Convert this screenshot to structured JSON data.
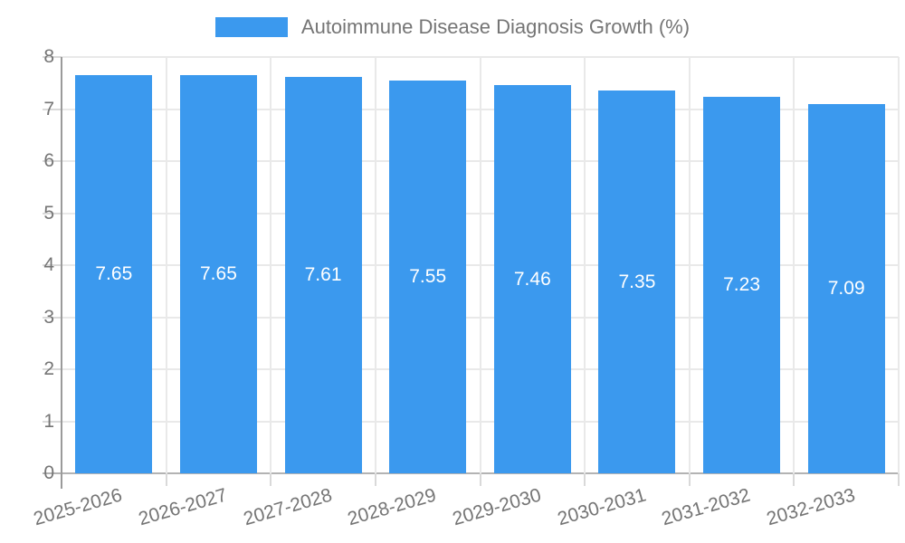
{
  "legend": {
    "label": "Autoimmune Disease Diagnosis Growth (%)"
  },
  "colors": {
    "bar": "#3b99ee",
    "grid": "#e9e9e9",
    "baseline": "#b3b3b3",
    "axis_line": "#9a9a9a",
    "tick": "#d9d9d9",
    "axis_text": "#757575",
    "value_text": "#ffffff",
    "background": "#ffffff"
  },
  "chart_data": {
    "type": "bar",
    "title": "Autoimmune Disease Diagnosis Growth (%)",
    "categories": [
      "2025-2026",
      "2026-2027",
      "2027-2028",
      "2028-2029",
      "2029-2030",
      "2030-2031",
      "2031-2032",
      "2032-2033"
    ],
    "values": [
      7.65,
      7.65,
      7.61,
      7.55,
      7.46,
      7.35,
      7.23,
      7.09
    ],
    "value_labels": [
      "7.65",
      "7.65",
      "7.61",
      "7.55",
      "7.46",
      "7.35",
      "7.23",
      "7.09"
    ],
    "xlabel": "",
    "ylabel": "",
    "ylim": [
      0,
      8
    ],
    "yticks": [
      0,
      1,
      2,
      3,
      4,
      5,
      6,
      7,
      8
    ],
    "grid": true,
    "legend_position": "top-center",
    "x_label_rotation_deg": -16,
    "value_label_position": "middle-of-bar"
  }
}
